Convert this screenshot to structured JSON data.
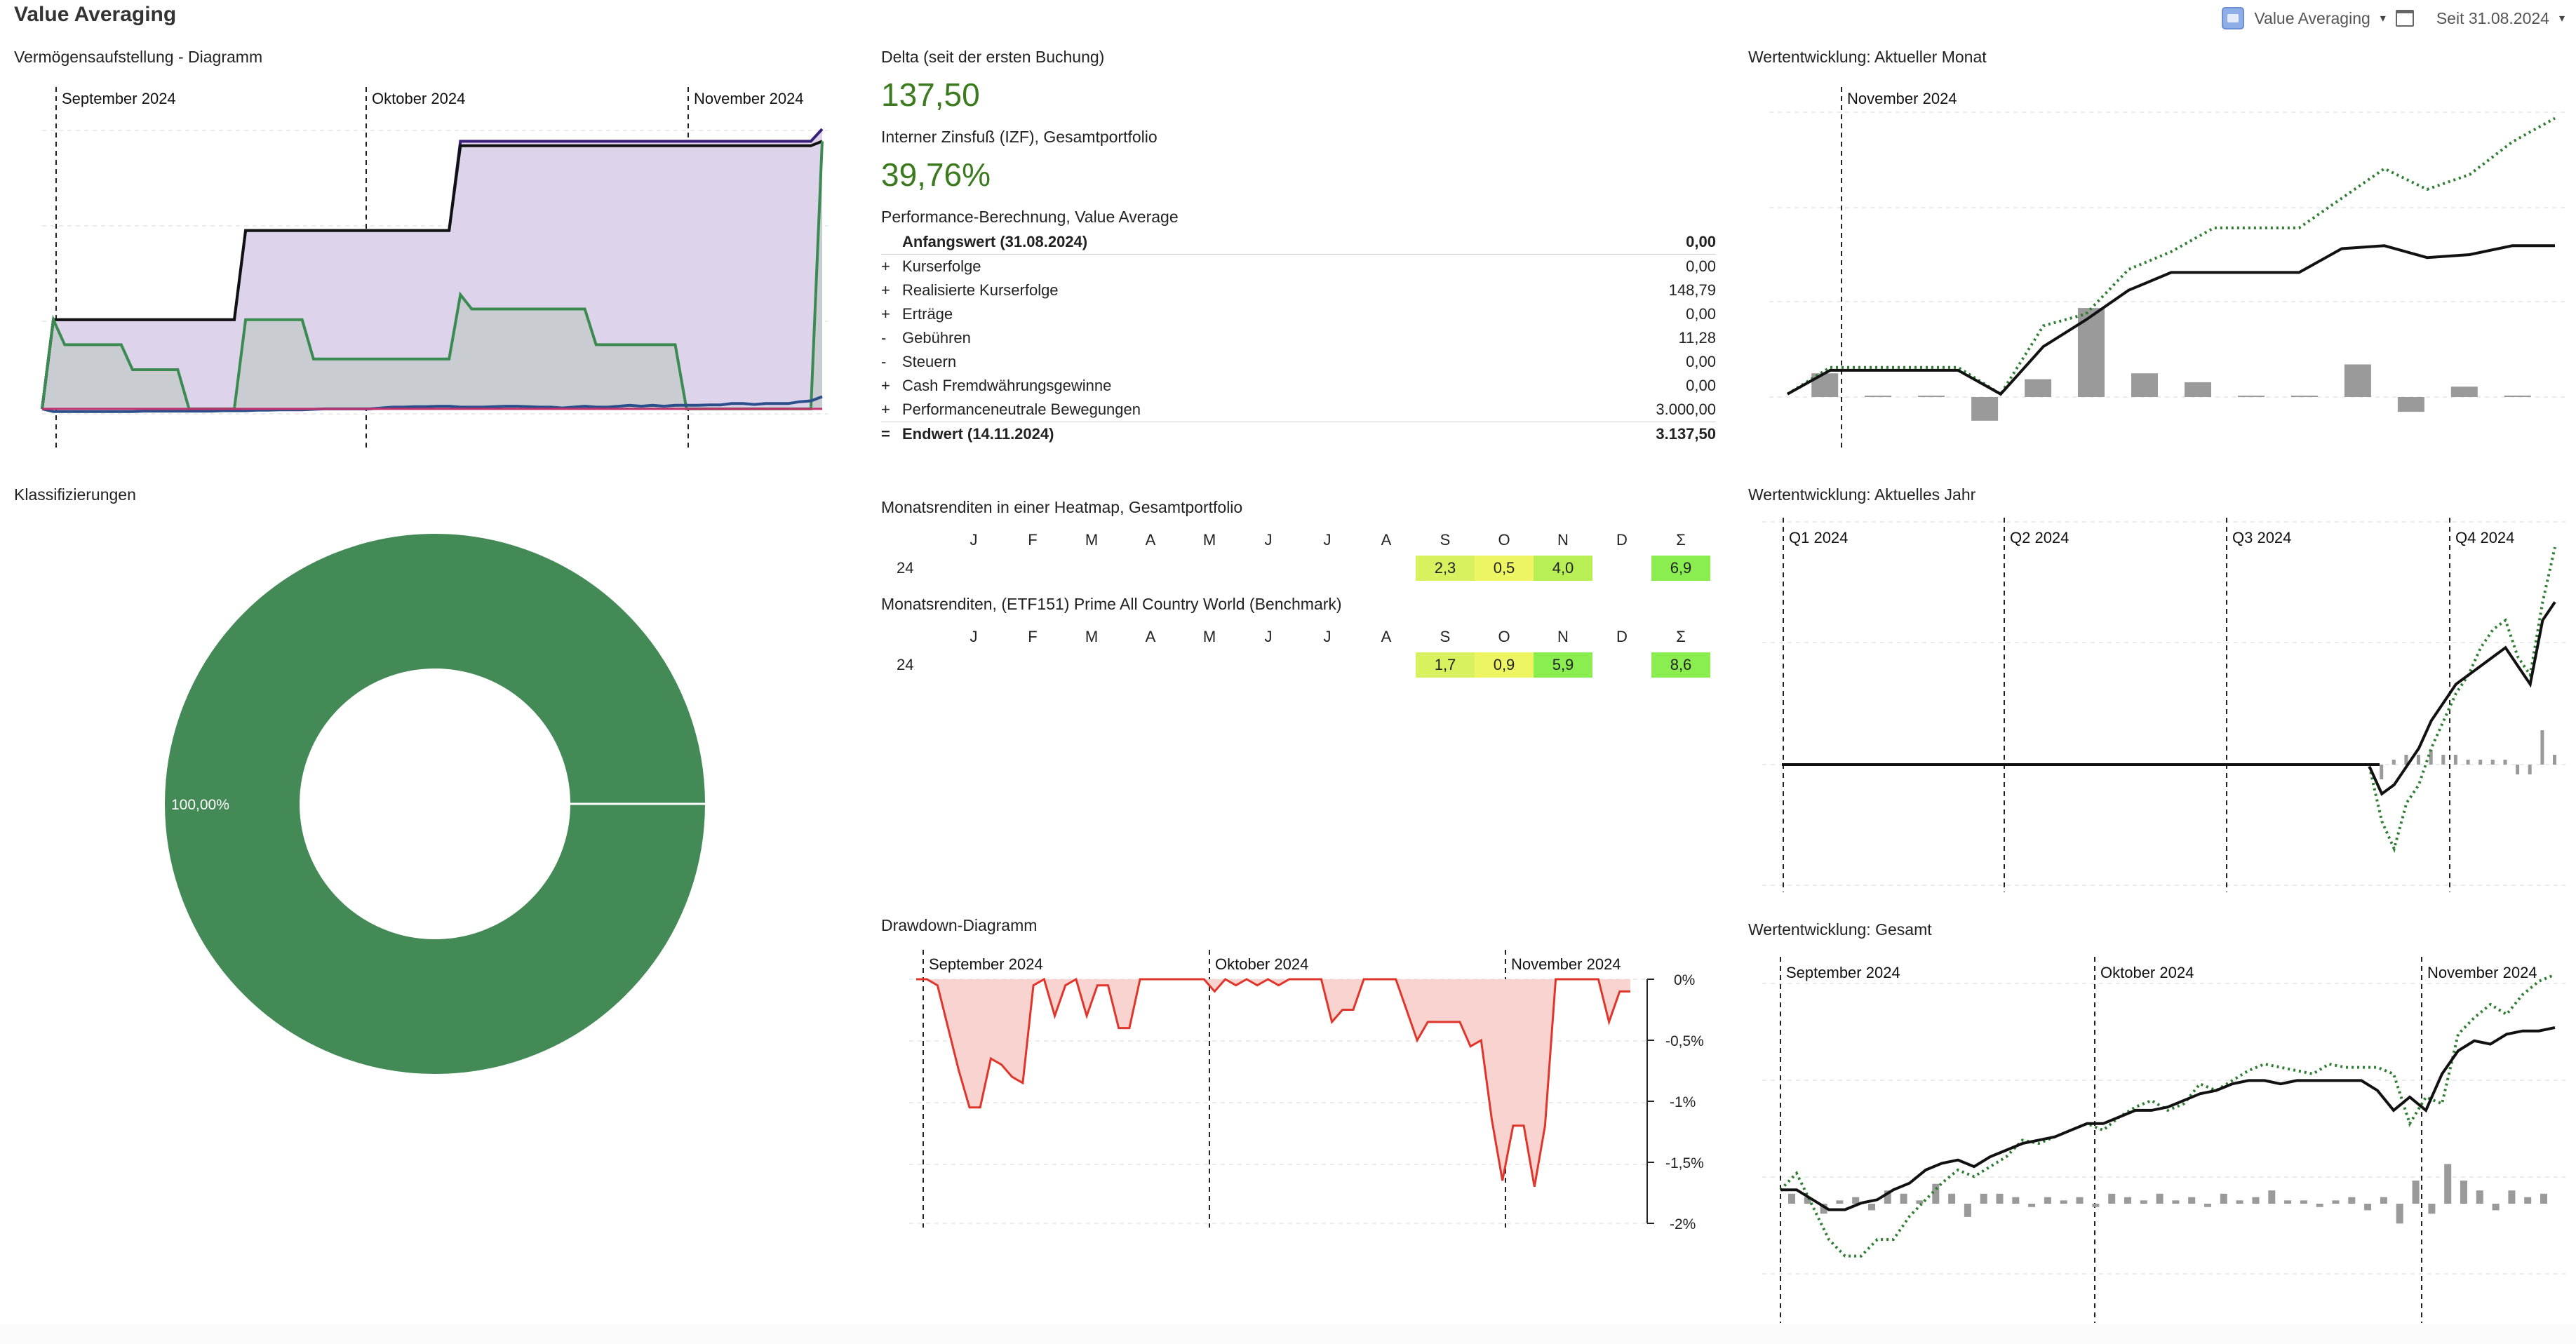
{
  "app_title": "Value Averaging",
  "toolbar": {
    "filter_label": "Value Averaging",
    "period_label": "Seit 31.08.2024"
  },
  "widgets": {
    "asset_chart_title": "Vermögensaufstellung - Diagramm",
    "classification_title": "Klassifizierungen",
    "delta_title": "Delta (seit der ersten Buchung)",
    "delta_value": "137,50",
    "irr_title": "Interner Zinsfuß (IZF), Gesamtportfolio",
    "irr_value": "39,76%",
    "performance_title": "Performance-Berechnung, Value Average",
    "heatmap_title": "Monatsrenditen in einer Heatmap, Gesamtportfolio",
    "benchmark_title": "Monatsrenditen, (ETF151) Prime All Country World (Benchmark)",
    "drawdown_title": "Drawdown-Diagramm",
    "month_perf_title": "Wertentwicklung: Aktueller Monat",
    "year_perf_title": "Wertentwicklung: Aktuelles Jahr",
    "total_perf_title": "Wertentwicklung: Gesamt"
  },
  "performance": {
    "opening": {
      "label": "Anfangswert (31.08.2024)",
      "value": "0,00"
    },
    "rows": [
      {
        "op": "+",
        "label": "Kurserfolge",
        "value": "0,00"
      },
      {
        "op": "+",
        "label": "Realisierte Kurserfolge",
        "value": "148,79"
      },
      {
        "op": "+",
        "label": "Erträge",
        "value": "0,00"
      },
      {
        "op": "-",
        "label": "Gebühren",
        "value": "11,28"
      },
      {
        "op": "-",
        "label": "Steuern",
        "value": "0,00"
      },
      {
        "op": "+",
        "label": "Cash Fremdwährungsgewinne",
        "value": "0,00"
      },
      {
        "op": "+",
        "label": "Performanceneutrale Bewegungen",
        "value": "3.000,00"
      }
    ],
    "closing": {
      "op": "=",
      "label": "Endwert (14.11.2024)",
      "value": "3.137,50"
    }
  },
  "heatmap": {
    "months": [
      "J",
      "F",
      "M",
      "A",
      "M",
      "J",
      "J",
      "A",
      "S",
      "O",
      "N",
      "D",
      "Σ"
    ],
    "portfolio": {
      "year": "24",
      "cells": [
        "",
        "",
        "",
        "",
        "",
        "",
        "",
        "",
        "2,3",
        "0,5",
        "4,0",
        "",
        "6,9"
      ]
    },
    "benchmark": {
      "year": "24",
      "cells": [
        "",
        "",
        "",
        "",
        "",
        "",
        "",
        "",
        "1,7",
        "0,9",
        "5,9",
        "",
        "8,6"
      ]
    },
    "colors": {
      "light": "#d7f25e",
      "mid": "#b8ef55",
      "strong": "#8aee50",
      "yellow": "#edf562"
    }
  },
  "donut": {
    "label": "100,00%",
    "color": "#448a56"
  },
  "chart_data": [
    {
      "type": "area",
      "name": "asset-chart",
      "period_labels": [
        "September 2024",
        "Oktober 2024",
        "November 2024"
      ],
      "series": [
        {
          "color": "#3a1f7a",
          "values": [
            0,
            1000,
            1000,
            1000,
            1000,
            1000,
            1000,
            1000,
            1000,
            1000,
            1000,
            1000,
            1000,
            1000,
            1000,
            1000,
            1000,
            1000,
            2000,
            2000,
            2000,
            2000,
            2000,
            2000,
            2000,
            2000,
            2000,
            2000,
            2000,
            2000,
            2000,
            2000,
            2000,
            2000,
            2000,
            2000,
            2000,
            3000,
            3000,
            3000,
            3000,
            3000,
            3000,
            3000,
            3000,
            3000,
            3000,
            3000,
            3000,
            3000,
            3000,
            3000,
            3000,
            3000,
            3000,
            3000,
            3000,
            3000,
            3000,
            3000,
            3000,
            3000,
            3000,
            3000,
            3000,
            3000,
            3000,
            3000,
            3000,
            3137
          ]
        },
        {
          "color": "#111111",
          "values": [
            0,
            1000,
            1000,
            1000,
            1000,
            1000,
            1000,
            1000,
            1000,
            1000,
            1000,
            1000,
            1000,
            1000,
            1000,
            1000,
            1000,
            1000,
            2000,
            2000,
            2000,
            2000,
            2000,
            2000,
            2000,
            2000,
            2000,
            2000,
            2000,
            2000,
            2000,
            2000,
            2000,
            2000,
            2000,
            2000,
            2000,
            2950,
            2950,
            2950,
            2950,
            2950,
            2950,
            2950,
            2950,
            2950,
            2950,
            2950,
            2950,
            2950,
            2950,
            2950,
            2950,
            2950,
            2950,
            2950,
            2950,
            2950,
            2950,
            2950,
            2950,
            2950,
            2950,
            2950,
            2950,
            2950,
            2950,
            2950,
            2950,
            3000
          ]
        },
        {
          "color": "#3b8a52",
          "values": [
            0,
            1000,
            720,
            720,
            720,
            720,
            720,
            720,
            440,
            440,
            440,
            440,
            440,
            0,
            0,
            0,
            0,
            0,
            1000,
            1000,
            1000,
            1000,
            1000,
            1000,
            560,
            560,
            560,
            560,
            560,
            560,
            560,
            560,
            560,
            560,
            560,
            560,
            560,
            1280,
            1120,
            1120,
            1120,
            1120,
            1120,
            1120,
            1120,
            1120,
            1120,
            1120,
            1120,
            720,
            720,
            720,
            720,
            720,
            720,
            720,
            720,
            0,
            0,
            0,
            0,
            0,
            0,
            0,
            0,
            0,
            0,
            0,
            0,
            3000
          ]
        },
        {
          "color": "#2b4f8a",
          "values": [
            0,
            -30,
            -30,
            -30,
            -30,
            -30,
            -30,
            -30,
            -30,
            -25,
            -25,
            -25,
            -25,
            -25,
            -25,
            -25,
            -20,
            -20,
            -20,
            -15,
            -15,
            -10,
            -10,
            -10,
            -5,
            0,
            0,
            0,
            0,
            0,
            10,
            20,
            20,
            25,
            25,
            30,
            30,
            20,
            20,
            20,
            25,
            30,
            30,
            25,
            20,
            20,
            10,
            20,
            30,
            20,
            20,
            30,
            40,
            30,
            40,
            30,
            40,
            40,
            40,
            45,
            45,
            60,
            60,
            50,
            60,
            60,
            60,
            80,
            90,
            137
          ]
        },
        {
          "color": "#c2336d",
          "values": [
            0,
            0,
            0,
            0,
            0,
            0,
            0,
            0,
            0,
            0,
            0,
            0,
            0,
            0,
            0,
            0,
            0,
            0,
            0,
            0,
            0,
            0,
            0,
            0,
            0,
            0,
            0,
            0,
            0,
            0,
            0,
            0,
            0,
            0,
            0,
            0,
            0,
            0,
            0,
            0,
            0,
            0,
            0,
            0,
            0,
            0,
            0,
            0,
            0,
            0,
            0,
            0,
            0,
            0,
            0,
            0,
            0,
            0,
            0,
            0,
            0,
            0,
            0,
            0,
            0,
            0,
            0,
            0,
            0,
            0
          ]
        }
      ]
    },
    {
      "type": "area",
      "name": "drawdown-chart",
      "period_labels": [
        "September 2024",
        "Oktober 2024",
        "November 2024"
      ],
      "y_ticks": [
        "0%",
        "-0,5%",
        "-1%",
        "-1,5%",
        "-2%"
      ],
      "ylim": [
        -2,
        0
      ],
      "values": [
        0,
        0,
        -0.05,
        -0.4,
        -0.75,
        -1.05,
        -1.05,
        -0.65,
        -0.7,
        -0.8,
        -0.85,
        -0.05,
        0,
        -0.3,
        -0.05,
        0,
        -0.3,
        -0.05,
        -0.05,
        -0.4,
        -0.4,
        0,
        0,
        0,
        0,
        0,
        0,
        0,
        -0.1,
        0,
        -0.05,
        0,
        -0.05,
        0,
        -0.05,
        0,
        0,
        0,
        0,
        -0.35,
        -0.25,
        -0.25,
        0,
        0,
        0,
        0,
        -0.25,
        -0.5,
        -0.35,
        -0.35,
        -0.35,
        -0.35,
        -0.55,
        -0.5,
        -1.15,
        -1.65,
        -1.2,
        -1.2,
        -1.7,
        -1.2,
        0,
        0,
        0,
        0,
        0,
        -0.35,
        -0.1,
        -0.1
      ]
    },
    {
      "type": "line",
      "name": "month-performance-chart",
      "period_labels": [
        "November 2024"
      ],
      "series": [
        {
          "color": "#2e7d32",
          "style": "dotted",
          "values": [
            0,
            0.9,
            0.9,
            0.9,
            0.9,
            0.0,
            2.3,
            2.7,
            4.2,
            4.8,
            5.6,
            5.6,
            5.6,
            6.6,
            7.6,
            6.9,
            7.4,
            8.5,
            9.3
          ]
        },
        {
          "color": "#111111",
          "values": [
            0,
            0.8,
            0.8,
            0.8,
            0.8,
            0.0,
            1.6,
            2.5,
            3.5,
            4.1,
            4.1,
            4.1,
            4.1,
            4.9,
            5.0,
            4.6,
            4.7,
            5.0,
            5.0
          ]
        }
      ],
      "bars": [
        0.8,
        0.03,
        0.03,
        -0.8,
        0.6,
        3.0,
        0.8,
        0.5,
        0.03,
        0.03,
        1.1,
        -0.5,
        0.35,
        0.05
      ]
    },
    {
      "type": "line",
      "name": "year-performance-chart",
      "period_labels": [
        "Q1 2024",
        "Q2 2024",
        "Q3 2024",
        "Q4 2024"
      ],
      "series": [
        {
          "color": "#2e7d32",
          "style": "dotted",
          "start_fraction": 0.76,
          "values": [
            0,
            -3.0,
            -4.5,
            -2.0,
            -1.0,
            1.0,
            2.5,
            4.0,
            5.0,
            6.5,
            7.5,
            8.0,
            6.0,
            5.0,
            9.0,
            12.0
          ]
        },
        {
          "color": "#111111",
          "start_fraction": 0.76,
          "values": [
            0,
            -1.5,
            -1.0,
            0.0,
            1.0,
            2.5,
            3.5,
            4.5,
            5.0,
            5.5,
            6.0,
            6.5,
            5.5,
            4.5,
            8.0,
            9.0
          ]
        }
      ]
    },
    {
      "type": "line",
      "name": "total-performance-chart",
      "period_labels": [
        "September 2024",
        "Oktober 2024",
        "November 2024"
      ],
      "series": [
        {
          "color": "#2e7d32",
          "style": "dotted",
          "values": [
            0,
            0.5,
            -0.5,
            -1.5,
            -2.0,
            -2.0,
            -1.5,
            -1.5,
            -0.8,
            -0.3,
            0.2,
            0.6,
            0.4,
            0.7,
            1.0,
            1.5,
            1.4,
            1.6,
            1.8,
            2.0,
            1.8,
            2.2,
            2.5,
            2.7,
            2.4,
            2.6,
            3.2,
            3.0,
            3.3,
            3.6,
            3.8,
            3.7,
            3.6,
            3.5,
            3.8,
            3.7,
            3.7,
            3.7,
            3.5,
            2.0,
            2.8,
            2.6,
            4.7,
            5.2,
            5.6,
            5.3,
            5.9,
            6.3,
            6.5
          ]
        },
        {
          "color": "#111111",
          "values": [
            0,
            0,
            -0.3,
            -0.6,
            -0.6,
            -0.4,
            -0.3,
            0,
            0.2,
            0.6,
            0.8,
            0.9,
            0.7,
            1.0,
            1.2,
            1.4,
            1.5,
            1.6,
            1.8,
            2.0,
            2.0,
            2.2,
            2.4,
            2.4,
            2.5,
            2.7,
            2.9,
            3.0,
            3.2,
            3.3,
            3.3,
            3.2,
            3.3,
            3.3,
            3.3,
            3.3,
            3.3,
            3.0,
            2.4,
            2.8,
            2.4,
            3.5,
            4.2,
            4.5,
            4.4,
            4.7,
            4.8,
            4.8,
            4.9
          ]
        }
      ],
      "bars": [
        0.3,
        0.2,
        -0.3,
        0.1,
        0.2,
        -0.2,
        0.4,
        0.3,
        0.1,
        0.6,
        0.3,
        -0.4,
        0.3,
        0.3,
        0.2,
        -0.1,
        0.2,
        0.1,
        0.2,
        -0.1,
        0.3,
        0.2,
        0.1,
        0.3,
        0.1,
        0.2,
        -0.1,
        0.3,
        0.1,
        0.2,
        0.4,
        0.1,
        0.1,
        -0.1,
        0.1,
        0.2,
        -0.2,
        0.2,
        -0.6,
        0.7,
        -0.3,
        1.2,
        0.7,
        0.4,
        -0.2,
        0.4,
        0.2,
        0.3
      ]
    }
  ]
}
